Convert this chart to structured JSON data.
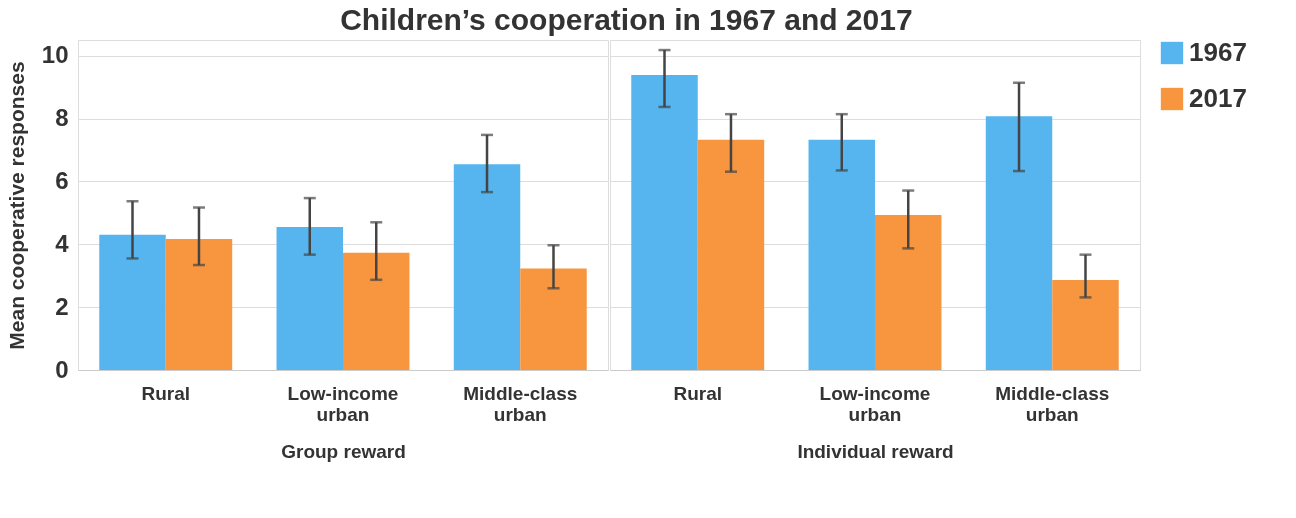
{
  "chart_data": [
    {
      "type": "bar",
      "title": "Children’s cooperation in 1967 and 2017",
      "ylabel": "Mean cooperative responses",
      "xlabel": "Group reward",
      "categories": [
        "Rural",
        "Low-income urban",
        "Middle-class urban"
      ],
      "ylim": [
        0,
        10.5
      ],
      "yticks": [
        0,
        2,
        4,
        6,
        8,
        10
      ],
      "grid": "y",
      "legend": "right",
      "series": [
        {
          "name": "1967",
          "color": "#56b4ee",
          "values": [
            4.3,
            4.55,
            6.55
          ],
          "errors": [
            [
              3.55,
              5.37
            ],
            [
              3.67,
              5.47
            ],
            [
              5.66,
              7.48
            ]
          ]
        },
        {
          "name": "2017",
          "color": "#f7963e",
          "values": [
            4.17,
            3.73,
            3.23
          ],
          "errors": [
            [
              3.34,
              5.17
            ],
            [
              2.87,
              4.7
            ],
            [
              2.6,
              3.97
            ]
          ]
        }
      ]
    },
    {
      "type": "bar",
      "xlabel": "Individual reward",
      "categories": [
        "Rural",
        "Low-income urban",
        "Middle-class urban"
      ],
      "ylim": [
        0,
        10.5
      ],
      "yticks": [
        0,
        2,
        4,
        6,
        8,
        10
      ],
      "grid": "y",
      "legend": "right",
      "tick_labels": "x",
      "series": [
        {
          "name": "1967",
          "color": "#56b4ee",
          "values": [
            9.39,
            7.33,
            8.07
          ],
          "errors": [
            [
              8.37,
              10.18
            ],
            [
              6.35,
              8.14
            ],
            [
              6.33,
              9.14
            ]
          ]
        },
        {
          "name": "2017",
          "color": "#f7963e",
          "values": [
            7.33,
            4.93,
            2.86
          ],
          "errors": [
            [
              6.31,
              8.14
            ],
            [
              3.87,
              5.71
            ],
            [
              2.31,
              3.67
            ]
          ]
        }
      ]
    }
  ]
}
